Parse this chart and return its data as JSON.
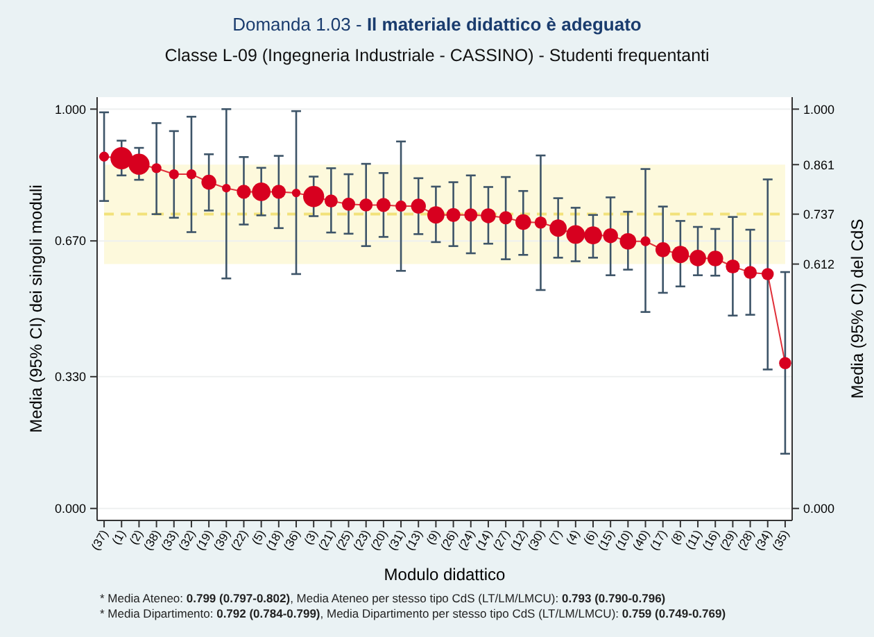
{
  "chart_data": {
    "type": "bubble",
    "title": "Domanda 1.03 - Il materiale didattico è adeguato",
    "subtitle": "Classe L-09 (Ingegneria Industriale - CASSINO) - Studenti frequentanti",
    "xlabel": "Modulo didattico",
    "ylabel": "Media (95% CI) dei singoli moduli",
    "y2label": "Media (95% CI) del CdS",
    "categories": [
      "(37)",
      "(1)",
      "(2)",
      "(38)",
      "(33)",
      "(32)",
      "(19)",
      "(39)",
      "(22)",
      "(5)",
      "(18)",
      "(36)",
      "(3)",
      "(21)",
      "(25)",
      "(23)",
      "(20)",
      "(31)",
      "(13)",
      "(9)",
      "(26)",
      "(24)",
      "(14)",
      "(27)",
      "(12)",
      "(30)",
      "(7)",
      "(4)",
      "(6)",
      "(15)",
      "(10)",
      "(40)",
      "(17)",
      "(8)",
      "(11)",
      "(16)",
      "(29)",
      "(28)",
      "(34)",
      "(35)"
    ],
    "series": [
      {
        "type": "line",
        "color": "#e0303a",
        "values": [
          0.881,
          0.877,
          0.862,
          0.852,
          0.837,
          0.837,
          0.817,
          0.802,
          0.793,
          0.793,
          0.793,
          0.79,
          0.781,
          0.77,
          0.762,
          0.76,
          0.76,
          0.757,
          0.757,
          0.735,
          0.735,
          0.735,
          0.733,
          0.728,
          0.717,
          0.716,
          0.702,
          0.686,
          0.684,
          0.683,
          0.669,
          0.669,
          0.648,
          0.636,
          0.627,
          0.626,
          0.606,
          0.591,
          0.587,
          0.364
        ]
      },
      {
        "color": "#d7001f",
        "values": [
          0.881,
          0.877,
          0.862,
          0.852,
          0.837,
          0.837,
          0.817,
          0.802,
          0.793,
          0.793,
          0.793,
          0.79,
          0.781,
          0.77,
          0.762,
          0.76,
          0.76,
          0.757,
          0.757,
          0.735,
          0.735,
          0.735,
          0.733,
          0.728,
          0.717,
          0.716,
          0.702,
          0.686,
          0.684,
          0.683,
          0.669,
          0.669,
          0.648,
          0.636,
          0.627,
          0.626,
          0.606,
          0.591,
          0.587,
          0.364
        ],
        "sizes": [
          0.2,
          1,
          0.9,
          0.2,
          0.2,
          0.2,
          0.45,
          0.15,
          0.4,
          0.7,
          0.4,
          0.15,
          0.9,
          0.35,
          0.35,
          0.35,
          0.4,
          0.25,
          0.45,
          0.6,
          0.4,
          0.35,
          0.45,
          0.35,
          0.5,
          0.3,
          0.6,
          0.7,
          0.65,
          0.45,
          0.55,
          0.2,
          0.45,
          0.6,
          0.55,
          0.5,
          0.4,
          0.35,
          0.3,
          0.3
        ],
        "errors": [
          [
            0.77,
            0.992
          ],
          [
            0.834,
            0.921
          ],
          [
            0.823,
            0.903
          ],
          [
            0.737,
            0.965
          ],
          [
            0.728,
            0.945
          ],
          [
            0.692,
            0.981
          ],
          [
            0.746,
            0.887
          ],
          [
            0.576,
            1.0
          ],
          [
            0.711,
            0.88
          ],
          [
            0.734,
            0.853
          ],
          [
            0.702,
            0.883
          ],
          [
            0.587,
            0.995
          ],
          [
            0.732,
            0.831
          ],
          [
            0.691,
            0.852
          ],
          [
            0.688,
            0.837
          ],
          [
            0.657,
            0.863
          ],
          [
            0.68,
            0.84
          ],
          [
            0.595,
            0.919
          ],
          [
            0.687,
            0.827
          ],
          [
            0.667,
            0.806
          ],
          [
            0.657,
            0.817
          ],
          [
            0.639,
            0.834
          ],
          [
            0.663,
            0.805
          ],
          [
            0.624,
            0.83
          ],
          [
            0.635,
            0.795
          ],
          [
            0.547,
            0.884
          ],
          [
            0.628,
            0.777
          ],
          [
            0.619,
            0.753
          ],
          [
            0.628,
            0.735
          ],
          [
            0.584,
            0.779
          ],
          [
            0.598,
            0.743
          ],
          [
            0.492,
            0.85
          ],
          [
            0.54,
            0.756
          ],
          [
            0.556,
            0.72
          ],
          [
            0.584,
            0.705
          ],
          [
            0.583,
            0.7
          ],
          [
            0.483,
            0.73
          ],
          [
            0.485,
            0.698
          ],
          [
            0.348,
            0.824
          ],
          [
            0.137,
            0.592
          ]
        ]
      }
    ],
    "ylim": [
      -0.03,
      1.03
    ],
    "yticks": [
      {
        "value": 0,
        "label": "0.000"
      },
      {
        "value": 0.33,
        "label": "0.330"
      },
      {
        "value": 0.67,
        "label": "0.670"
      },
      {
        "value": 1,
        "label": "1.000"
      }
    ],
    "y2lim": [
      -0.03,
      1.03
    ],
    "y2ticks": [
      {
        "value": 0,
        "label": "0.000"
      },
      {
        "value": 0.612,
        "label": "0.612"
      },
      {
        "value": 0.737,
        "label": "0.737"
      },
      {
        "value": 0.861,
        "label": "0.861"
      },
      {
        "value": 1,
        "label": "1.000"
      }
    ],
    "grid": "y",
    "ref_lines": [
      {
        "axis": "y2",
        "value": 0.737,
        "color": "#f2e27a",
        "line_style": "dashed"
      }
    ],
    "bands": [
      {
        "axis": "y2",
        "from": 0.612,
        "to": 0.861,
        "color": "#fdf9dc"
      }
    ],
    "annotations": [
      "* Media Ateneo: 0.799 (0.797-0.802),  Media Ateneo per stesso tipo CdS (LT/LM/LMCU): 0.793 (0.790-0.796)",
      "* Media Dipartimento: 0.792 (0.784-0.799), Media Dipartimento per stesso tipo CdS (LT/LM/LMCU): 0.759 (0.749-0.769)"
    ]
  }
}
